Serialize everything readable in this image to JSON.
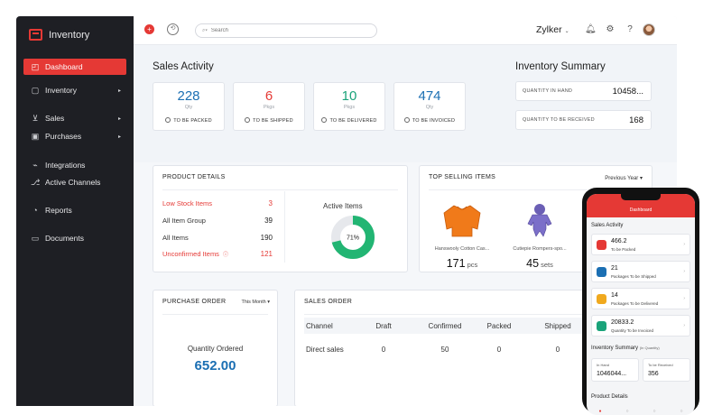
{
  "sidebar": {
    "brand": "Inventory",
    "items": [
      {
        "label": "Dashboard",
        "icon": "dashboard-icon"
      },
      {
        "label": "Inventory",
        "icon": "box-icon"
      },
      {
        "label": "Sales",
        "icon": "cart-icon"
      },
      {
        "label": "Purchases",
        "icon": "bag-icon"
      },
      {
        "label": "Integrations",
        "icon": "plug-icon"
      },
      {
        "label": "Active Channels",
        "icon": "channel-icon"
      },
      {
        "label": "Reports",
        "icon": "chart-icon"
      },
      {
        "label": "Documents",
        "icon": "folder-icon"
      }
    ],
    "expand_arrow": "▸"
  },
  "topbar": {
    "search_placeholder": "Search",
    "org": "Zylker",
    "org_chevron": "⌄"
  },
  "sales_activity": {
    "title": "Sales Activity",
    "cards": [
      {
        "value": "228",
        "unit": "Qty",
        "label": "TO BE PACKED",
        "color": "#1b6fb3"
      },
      {
        "value": "6",
        "unit": "Pkgs",
        "label": "TO BE SHIPPED",
        "color": "#e53935"
      },
      {
        "value": "10",
        "unit": "Pkgs",
        "label": "TO BE DELIVERED",
        "color": "#1aa37a"
      },
      {
        "value": "474",
        "unit": "Qty",
        "label": "TO BE INVOICED",
        "color": "#1b6fb3"
      }
    ]
  },
  "inventory_summary": {
    "title": "Inventory Summary",
    "rows": [
      {
        "label": "QUANTITY IN HAND",
        "value": "10458..."
      },
      {
        "label": "QUANTITY TO BE RECEIVED",
        "value": "168"
      }
    ]
  },
  "product_details": {
    "title": "PRODUCT DETAILS",
    "rows": [
      {
        "label": "Low Stock Items",
        "value": "3",
        "alert": true
      },
      {
        "label": "All Item Group",
        "value": "39",
        "alert": false
      },
      {
        "label": "All Items",
        "value": "190",
        "alert": false
      },
      {
        "label": "Unconfirmed Items",
        "value": "121",
        "alert": true
      }
    ],
    "donut_title": "Active Items",
    "donut_label": "71%",
    "active_fraction": 0.71,
    "donut_colors": {
      "active": "#22b573",
      "rest": "#e6e8ec"
    }
  },
  "top_selling": {
    "title": "TOP SELLING ITEMS",
    "filter": "Previous Year",
    "items": [
      {
        "name": "Hanswooly Cotton Cas...",
        "count": "171",
        "unit": "pcs"
      },
      {
        "name": "Cutiepie Rompers-spo...",
        "count": "45",
        "unit": "sets"
      }
    ]
  },
  "purchase_order": {
    "title": "PURCHASE ORDER",
    "filter": "This Month",
    "qty_label": "Quantity Ordered",
    "qty_value": "652.00"
  },
  "sales_order": {
    "title": "SALES ORDER",
    "columns": [
      "Channel",
      "Draft",
      "Confirmed",
      "Packed",
      "Shipped"
    ],
    "rows": [
      [
        "Direct sales",
        "0",
        "50",
        "0",
        "0"
      ]
    ]
  },
  "phone": {
    "header": "Dashboard",
    "sales_title": "Sales Activity",
    "cards": [
      {
        "value": "466.2",
        "label": "To be Packed",
        "color": "#e53935"
      },
      {
        "value": "21",
        "label": "Packages To be Shipped",
        "color": "#1b6fb3"
      },
      {
        "value": "14",
        "label": "Packages To be Delivered",
        "color": "#f0a91e"
      },
      {
        "value": "20833.2",
        "label": "Quantity To be Invoiced",
        "color": "#1aa37a"
      }
    ],
    "inv_title": "Inventory Summary",
    "inv_sub": "(In Quantity)",
    "inv": [
      {
        "label": "In Hand",
        "value": "1046044..."
      },
      {
        "label": "To be Received",
        "value": "356"
      }
    ],
    "details_title": "Product Details"
  }
}
